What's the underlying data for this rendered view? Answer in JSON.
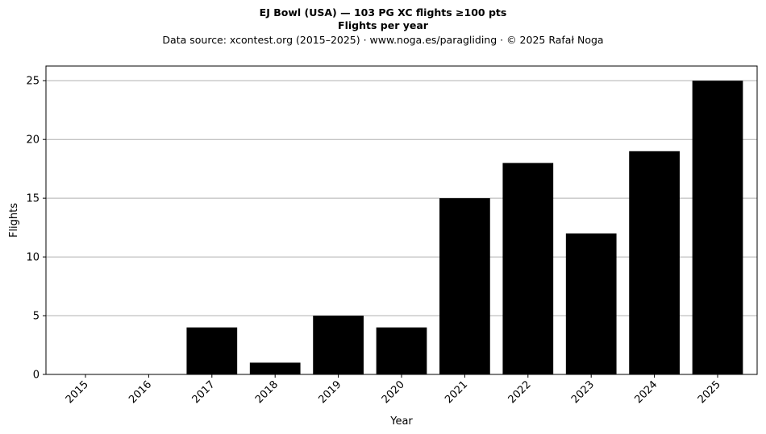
{
  "chart_data": {
    "type": "bar",
    "title": "EJ Bowl (USA)  —  103 PG XC flights ≥100 pts",
    "title_line2": "Flights per year",
    "subtitle": "Data source: xcontest.org (2015–2025)  ·  www.noga.es/paragliding  ·  © 2025 Rafał Noga",
    "xlabel": "Year",
    "ylabel": "Flights",
    "categories": [
      "2015",
      "2016",
      "2017",
      "2018",
      "2019",
      "2020",
      "2021",
      "2022",
      "2023",
      "2024",
      "2025"
    ],
    "values": [
      0,
      0,
      4,
      1,
      5,
      4,
      15,
      18,
      12,
      19,
      25
    ],
    "ylim": [
      0,
      26.25
    ],
    "yticks": [
      0,
      5,
      10,
      15,
      20,
      25
    ],
    "grid": "horizontal",
    "bar_color": "#000000",
    "grid_color": "#b0b0b0"
  }
}
